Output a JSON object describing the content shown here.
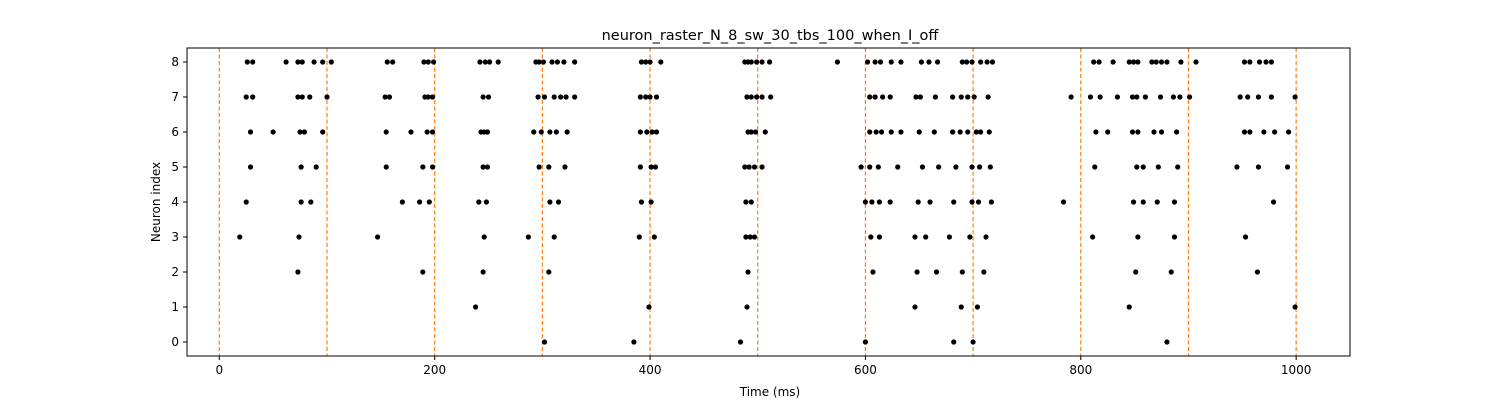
{
  "chart_data": {
    "type": "scatter",
    "title": "neuron_raster_N_8_sw_30_tbs_100_when_I_off",
    "xlabel": "Time (ms)",
    "ylabel": "Neuron index",
    "xlim": [
      -30,
      1050
    ],
    "ylim": [
      -0.4,
      8.4
    ],
    "x_ticks": [
      0,
      200,
      400,
      600,
      800,
      1000
    ],
    "y_ticks": [
      0,
      1,
      2,
      3,
      4,
      5,
      6,
      7,
      8
    ],
    "grid": false,
    "vlines": [
      0,
      100,
      200,
      300,
      400,
      500,
      600,
      700,
      800,
      900,
      1000
    ],
    "vline_color": "#ff7f0e",
    "point_color": "#000000",
    "series": [
      {
        "neuron": 0,
        "x": [
          302,
          385,
          484,
          600,
          682,
          700,
          880
        ]
      },
      {
        "neuron": 1,
        "x": [
          238,
          399,
          490,
          646,
          689,
          704,
          845,
          999
        ]
      },
      {
        "neuron": 2,
        "x": [
          73,
          189,
          245,
          306,
          491,
          607,
          648,
          666,
          690,
          710,
          851,
          884,
          964
        ]
      },
      {
        "neuron": 3,
        "x": [
          19,
          74,
          147,
          246,
          287,
          311,
          390,
          404,
          489,
          493,
          497,
          605,
          613,
          646,
          656,
          678,
          697,
          712,
          811,
          853,
          887,
          953
        ]
      },
      {
        "neuron": 4,
        "x": [
          25,
          76,
          85,
          170,
          186,
          195,
          241,
          248,
          307,
          315,
          392,
          401,
          489,
          494,
          600,
          606,
          613,
          623,
          649,
          660,
          682,
          699,
          705,
          717,
          784,
          849,
          858,
          871,
          887,
          979
        ]
      },
      {
        "neuron": 5,
        "x": [
          29,
          76,
          90,
          155,
          189,
          198,
          245,
          249,
          297,
          306,
          321,
          391,
          401,
          405,
          488,
          492,
          497,
          504,
          596,
          604,
          612,
          630,
          653,
          668,
          684,
          699,
          706,
          716,
          813,
          852,
          858,
          872,
          890,
          945,
          965,
          992
        ]
      },
      {
        "neuron": 6,
        "x": [
          29,
          50,
          75,
          79,
          96,
          155,
          178,
          193,
          198,
          243,
          246,
          249,
          292,
          299,
          307,
          313,
          323,
          391,
          397,
          402,
          406,
          491,
          494,
          498,
          507,
          604,
          610,
          615,
          624,
          633,
          650,
          664,
          681,
          688,
          695,
          703,
          707,
          715,
          814,
          825,
          848,
          853,
          868,
          875,
          889,
          952,
          957,
          970,
          980,
          993
        ]
      },
      {
        "neuron": 7,
        "x": [
          25,
          31,
          73,
          77,
          84,
          100,
          154,
          158,
          191,
          194,
          198,
          245,
          250,
          296,
          302,
          311,
          317,
          322,
          330,
          391,
          396,
          400,
          406,
          490,
          494,
          499,
          504,
          512,
          604,
          609,
          616,
          623,
          647,
          651,
          665,
          681,
          689,
          695,
          701,
          714,
          791,
          809,
          818,
          834,
          848,
          852,
          860,
          874,
          886,
          892,
          901,
          948,
          955,
          965,
          977,
          999
        ]
      },
      {
        "neuron": 8,
        "x": [
          26,
          31,
          62,
          73,
          77,
          88,
          96,
          104,
          156,
          161,
          190,
          194,
          199,
          242,
          247,
          251,
          259,
          294,
          297,
          301,
          309,
          314,
          320,
          330,
          392,
          396,
          400,
          410,
          488,
          491,
          494,
          499,
          504,
          511,
          574,
          602,
          609,
          614,
          624,
          633,
          652,
          659,
          667,
          690,
          694,
          699,
          707,
          713,
          718,
          812,
          817,
          830,
          845,
          849,
          853,
          866,
          870,
          875,
          880,
          893,
          907,
          952,
          957,
          966,
          972,
          977
        ]
      }
    ]
  }
}
